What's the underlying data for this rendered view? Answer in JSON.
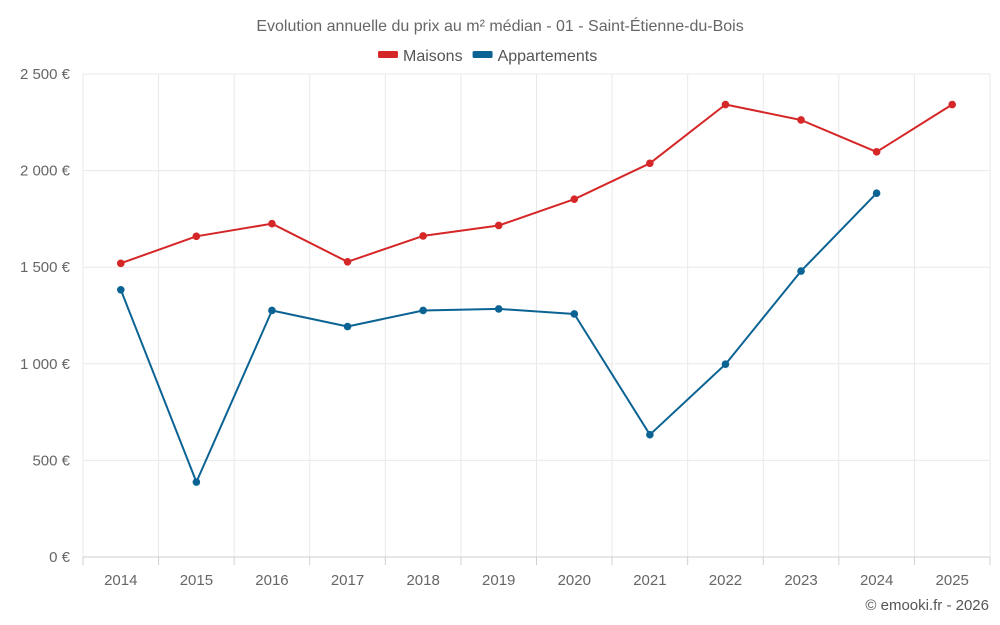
{
  "chart_data": {
    "type": "line",
    "title": "Evolution annuelle du prix au m² médian - 01 - Saint-Étienne-du-Bois",
    "categories": [
      "2014",
      "2015",
      "2016",
      "2017",
      "2018",
      "2019",
      "2020",
      "2021",
      "2022",
      "2023",
      "2024",
      "2025"
    ],
    "series": [
      {
        "name": "Maisons",
        "color": "#d62728",
        "values": [
          1520,
          1660,
          1725,
          1528,
          1662,
          1716,
          1852,
          2038,
          2342,
          2262,
          2097,
          2342
        ]
      },
      {
        "name": "Appartements",
        "color": "#0b6394",
        "values": [
          1383,
          388,
          1276,
          1193,
          1276,
          1284,
          1258,
          633,
          998,
          1480,
          1883,
          null
        ]
      }
    ],
    "y_ticks": [
      0,
      500,
      1000,
      1500,
      2000,
      2500
    ],
    "y_tick_labels": [
      "0 €",
      "500 €",
      "1 000 €",
      "1 500 €",
      "2 000 €",
      "2 500 €"
    ],
    "ylim": [
      0,
      2500
    ],
    "xlabel": "",
    "ylabel": "",
    "grid": true,
    "legend_position": "top-center"
  },
  "credit": "© emooki.fr - 2026"
}
